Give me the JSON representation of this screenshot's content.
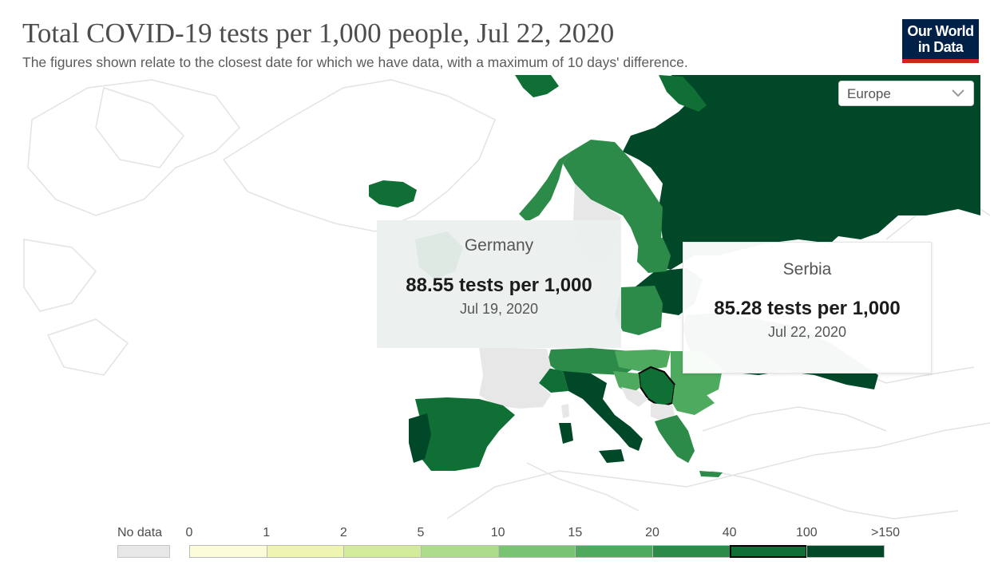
{
  "header": {
    "title": "Total COVID-19 tests per 1,000 people, Jul 22, 2020",
    "subtitle": "The figures shown relate to the closest date for which we have data, with a maximum of 10 days' difference.",
    "logo_line1": "Our World",
    "logo_line2": "in Data"
  },
  "region_select": {
    "value": "Europe",
    "icon": "chevron-down-icon"
  },
  "tooltips": [
    {
      "country": "Germany",
      "value": "88.55 tests per 1,000",
      "date": "Jul 19, 2020"
    },
    {
      "country": "Serbia",
      "value": "85.28 tests per 1,000",
      "date": "Jul 22, 2020"
    }
  ],
  "legend": {
    "no_data_label": "No data",
    "no_data_color": "#e7e7e7",
    "ticks": [
      "0",
      "1",
      "2",
      "5",
      "10",
      "15",
      "20",
      "40",
      "100",
      ">150"
    ],
    "colors": [
      "#fbfcd9",
      "#eef5b0",
      "#d3ec9c",
      "#addc8d",
      "#79c473",
      "#4eaa5f",
      "#2c8b48",
      "#0f6f35",
      "#014828"
    ],
    "highlighted_bin": 7
  },
  "colors": {
    "bin_20_40": "#2c8b48",
    "bin_40_100": "#0f6f35",
    "bin_100_150": "#014828",
    "no_data": "#e7e7e7",
    "land_outline": "#e3e3e3",
    "logo_bg": "#002147",
    "logo_bar": "#ce261e"
  }
}
